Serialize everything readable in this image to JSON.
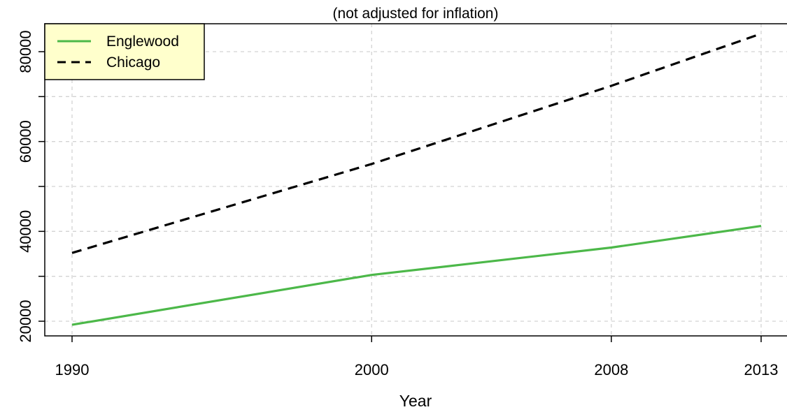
{
  "chart_data": {
    "type": "line",
    "subtitle": "(not adjusted for inflation)",
    "xlabel": "Year",
    "ylabel": "",
    "x": [
      1990,
      2000,
      2008,
      2013
    ],
    "x_ticks": [
      "1990",
      "2000",
      "2008",
      "2013"
    ],
    "y_ticks": [
      "20000",
      "40000",
      "60000",
      "80000"
    ],
    "y_tick_values": [
      20000,
      40000,
      60000,
      80000
    ],
    "ylim": [
      18000,
      86500
    ],
    "grid": true,
    "legend_position": "top-left",
    "series": [
      {
        "name": "Englewood",
        "values": [
          19200,
          30300,
          36400,
          41200
        ],
        "color": "#4cb849",
        "style": "solid"
      },
      {
        "name": "Chicago",
        "values": [
          35200,
          55000,
          72400,
          84000
        ],
        "color": "#000000",
        "style": "dashed"
      }
    ],
    "colors": {
      "legend_background": "#ffffcc",
      "grid": "#d3d3d3"
    }
  }
}
